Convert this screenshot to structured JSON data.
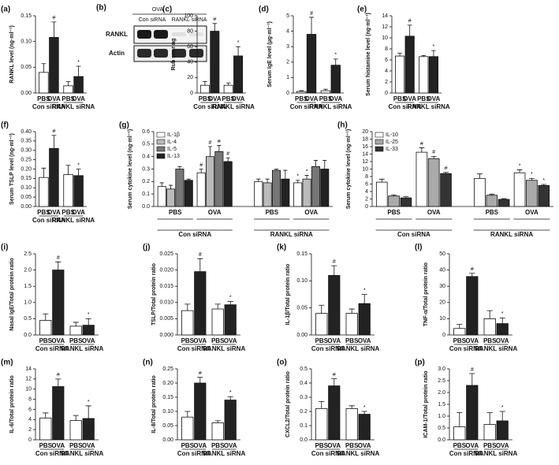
{
  "blot": {
    "panel": "(b)",
    "treatment": "OVA",
    "groups": [
      "Con siRNA",
      "RANKL siRNA"
    ],
    "rows": [
      "RANKL",
      "Actin"
    ]
  },
  "chart_data": [
    {
      "type": "bar",
      "panel": "(a)",
      "ylabel": "RANKL level (ng·ml⁻¹)",
      "categories": [
        "PBS",
        "OVA",
        "PBS",
        "OVA"
      ],
      "groups": [
        "Con siRNA",
        "RANKL siRNA"
      ],
      "values": [
        0.04,
        0.108,
        0.014,
        0.032
      ],
      "errors": [
        0.017,
        0.03,
        0.008,
        0.02
      ],
      "colors": [
        "#ffffff",
        "#222222",
        "#ffffff",
        "#222222"
      ],
      "significance": [
        null,
        "#",
        null,
        "*"
      ],
      "ylim": [
        0,
        0.15
      ],
      "yticks": [
        {
          "value": 0,
          "label": "0.00"
        },
        0.05,
        {
          "value": 0.1,
          "label": "0.10"
        },
        0.15
      ]
    },
    {
      "type": "bar",
      "panel": "(c)",
      "ylabel": "Rub scoring",
      "categories": [
        "PBS",
        "OVA",
        "PBS",
        "OVA"
      ],
      "groups": [
        "Con siRNA",
        "RANKL siRNA"
      ],
      "values": [
        10,
        80,
        10,
        48
      ],
      "errors": [
        5,
        10,
        3,
        12
      ],
      "colors": [
        "#ffffff",
        "#222222",
        "#ffffff",
        "#222222"
      ],
      "significance": [
        null,
        "#",
        null,
        "*"
      ],
      "ylim": [
        0,
        100
      ],
      "yticks": [
        0,
        20,
        40,
        60,
        80,
        100
      ]
    },
    {
      "type": "bar",
      "panel": "(d)",
      "ylabel": "Serum IgE level (µg·ml⁻¹)",
      "categories": [
        "PBS",
        "OVA",
        "PBS",
        "OVA"
      ],
      "groups": [
        "Con siRNA",
        "RANKL siRNA"
      ],
      "values": [
        0.1,
        3.8,
        0.15,
        1.8
      ],
      "errors": [
        0.05,
        1.1,
        0.1,
        0.4
      ],
      "colors": [
        "#ffffff",
        "#222222",
        "#ffffff",
        "#222222"
      ],
      "significance": [
        null,
        "#",
        null,
        "*"
      ],
      "ylim": [
        0,
        5
      ],
      "yticks": [
        0,
        1,
        2,
        3,
        4,
        5
      ]
    },
    {
      "type": "bar",
      "panel": "(e)",
      "ylabel": "Serum histamine level (ng·ml⁻¹)",
      "categories": [
        "PBS",
        "OVA",
        "PBS",
        "OVA"
      ],
      "groups": [
        "Con siRNA",
        "RANKL siRNA"
      ],
      "values": [
        6.7,
        10.3,
        6.6,
        6.6
      ],
      "errors": [
        0.5,
        2,
        0.2,
        1.1
      ],
      "colors": [
        "#ffffff",
        "#222222",
        "#ffffff",
        "#222222"
      ],
      "significance": [
        null,
        "#",
        null,
        "*"
      ],
      "ylim": [
        0,
        14
      ],
      "yticks": [
        0,
        2,
        4,
        6,
        8,
        10,
        12,
        14
      ]
    },
    {
      "type": "bar",
      "panel": "(f)",
      "ylabel": "Serum TSLP level (ng·ml⁻¹)",
      "categories": [
        "PBS",
        "OVA",
        "PBS",
        "OVA"
      ],
      "groups": [
        "Con siRNA",
        "RANKL siRNA"
      ],
      "values": [
        0.155,
        0.31,
        0.17,
        0.165
      ],
      "errors": [
        0.05,
        0.07,
        0.05,
        0.035
      ],
      "colors": [
        "#ffffff",
        "#222222",
        "#ffffff",
        "#222222"
      ],
      "significance": [
        null,
        "#",
        null,
        "*"
      ],
      "ylim": [
        0,
        0.4
      ],
      "yticks": [
        {
          "value": 0,
          "label": "0.00"
        },
        0.05,
        {
          "value": 0.1,
          "label": "0.10"
        },
        0.15,
        {
          "value": 0.2,
          "label": "0.20"
        },
        0.25,
        {
          "value": 0.3,
          "label": "0.30"
        },
        0.35,
        {
          "value": 0.4,
          "label": "0.40"
        }
      ]
    },
    {
      "type": "grouped_bar",
      "panel": "(g)",
      "ylabel": "Serum cytokine level (ng·ml⁻¹)",
      "categories": [
        "PBS",
        "OVA",
        "PBS",
        "OVA"
      ],
      "groups": [
        "Con siRNA",
        "RANKL siRNA"
      ],
      "legend": "upper left",
      "series": [
        {
          "name": "IL-1β",
          "color": "#ffffff",
          "values": [
            0.16,
            0.27,
            0.2,
            0.19
          ],
          "errors": [
            0.03,
            0.03,
            0.02,
            0.02
          ],
          "significance": [
            null,
            "#",
            null,
            "*"
          ]
        },
        {
          "name": "IL-4",
          "color": "#bbbbbb",
          "values": [
            0.14,
            0.4,
            0.19,
            0.22
          ],
          "errors": [
            0.03,
            0.08,
            0.03,
            0.03
          ],
          "significance": [
            null,
            "#",
            null,
            "*"
          ]
        },
        {
          "name": "IL-5",
          "color": "#777777",
          "values": [
            0.3,
            0.44,
            0.29,
            0.32
          ],
          "errors": [
            0.02,
            0.05,
            0.01,
            0.05
          ],
          "significance": [
            null,
            "#",
            null,
            null
          ]
        },
        {
          "name": "IL-13",
          "color": "#222222",
          "values": [
            0.21,
            0.36,
            0.22,
            0.3
          ],
          "errors": [
            0.01,
            0.03,
            0.07,
            0.07
          ],
          "significance": [
            null,
            "#",
            null,
            null
          ]
        }
      ],
      "ylim": [
        0,
        0.6
      ],
      "yticks": [
        {
          "value": 0,
          "label": "0.0"
        },
        0.1,
        0.2,
        0.3,
        0.4,
        0.5,
        0.6
      ]
    },
    {
      "type": "grouped_bar",
      "panel": "(h)",
      "ylabel": "Serum cytokine level (ng·ml⁻¹)",
      "categories": [
        "PBS",
        "OVA",
        "PBS",
        "OVA"
      ],
      "groups": [
        "Con siRNA",
        "RANKL siRNA"
      ],
      "legend": "upper left",
      "series": [
        {
          "name": "IL-10",
          "color": "#ffffff",
          "values": [
            6.5,
            14.5,
            7.5,
            9
          ],
          "errors": [
            0.8,
            1.2,
            1.2,
            0.8
          ],
          "significance": [
            null,
            "#",
            null,
            "*"
          ]
        },
        {
          "name": "IL-25",
          "color": "#aaaaaa",
          "values": [
            2.8,
            12.8,
            3,
            7
          ],
          "errors": [
            0.3,
            0.6,
            0.3,
            0.5
          ],
          "significance": [
            null,
            "#",
            null,
            "*"
          ]
        },
        {
          "name": "IL-33",
          "color": "#333333",
          "values": [
            2.3,
            8.8,
            1.9,
            5.6
          ],
          "errors": [
            0.3,
            0.3,
            0.2,
            0.3
          ],
          "significance": [
            null,
            "#",
            null,
            "*"
          ]
        }
      ],
      "ylim": [
        0,
        20
      ],
      "yticks": [
        0,
        2,
        4,
        6,
        8,
        10,
        12,
        14,
        16,
        18,
        20
      ]
    },
    {
      "type": "bar",
      "panel": "(i)",
      "ylabel": "Nasal IgE/Total protein ratio",
      "categories": [
        "PBS",
        "OVA",
        "PBS",
        "OVA"
      ],
      "groups": [
        "Con siRNA",
        "RANKL siRNA"
      ],
      "values": [
        0.45,
        2.0,
        0.27,
        0.3
      ],
      "errors": [
        0.2,
        0.25,
        0.12,
        0.2
      ],
      "colors": [
        "#ffffff",
        "#222222",
        "#ffffff",
        "#222222"
      ],
      "significance": [
        null,
        "#",
        null,
        "*"
      ],
      "ylim": [
        0,
        2.5
      ],
      "yticks": [
        {
          "value": 0,
          "label": "0.0"
        },
        0.5,
        {
          "value": 1,
          "label": "1.0"
        },
        1.5,
        {
          "value": 2,
          "label": "2.0"
        },
        2.5
      ]
    },
    {
      "type": "bar",
      "panel": "(j)",
      "ylabel": "TSLP/Total protein ratio",
      "categories": [
        "PBS",
        "OVA",
        "PBS",
        "OVA"
      ],
      "groups": [
        "Con siRNA",
        "RANKL siRNA"
      ],
      "values": [
        0.0075,
        0.0195,
        0.008,
        0.0093
      ],
      "errors": [
        0.002,
        0.004,
        0.0015,
        0.001
      ],
      "colors": [
        "#ffffff",
        "#222222",
        "#ffffff",
        "#222222"
      ],
      "significance": [
        null,
        "#",
        null,
        "*"
      ],
      "ylim": [
        0,
        0.025
      ],
      "yticks": [
        {
          "value": 0,
          "label": "0.000"
        },
        0.005,
        {
          "value": 0.01,
          "label": "0.010"
        },
        0.015,
        {
          "value": 0.02,
          "label": "0.020"
        },
        0.025
      ]
    },
    {
      "type": "bar",
      "panel": "(k)",
      "ylabel": "IL-1β/Total protein ratio",
      "categories": [
        "PBS",
        "OVA",
        "PBS",
        "OVA"
      ],
      "groups": [
        "Con siRNA",
        "RANKL siRNA"
      ],
      "values": [
        0.04,
        0.11,
        0.04,
        0.058
      ],
      "errors": [
        0.015,
        0.018,
        0.008,
        0.017
      ],
      "colors": [
        "#ffffff",
        "#222222",
        "#ffffff",
        "#222222"
      ],
      "significance": [
        null,
        "#",
        null,
        "*"
      ],
      "ylim": [
        0,
        0.15
      ],
      "yticks": [
        {
          "value": 0,
          "label": "0.00"
        },
        0.05,
        {
          "value": 0.1,
          "label": "0.10"
        },
        0.15
      ]
    },
    {
      "type": "bar",
      "panel": "(l)",
      "ylabel": "TNF-α/Total protein ratio",
      "categories": [
        "PBS",
        "OVA",
        "PBS",
        "OVA"
      ],
      "groups": [
        "Con siRNA",
        "RANKL siRNA"
      ],
      "values": [
        4,
        36,
        10,
        7
      ],
      "errors": [
        2.5,
        2,
        5,
        3.5
      ],
      "colors": [
        "#ffffff",
        "#222222",
        "#ffffff",
        "#222222"
      ],
      "significance": [
        null,
        "#",
        null,
        "*"
      ],
      "ylim": [
        0,
        50
      ],
      "yticks": [
        0,
        10,
        20,
        30,
        40,
        50
      ]
    },
    {
      "type": "bar",
      "panel": "(m)",
      "ylabel": "IL-6/Total protein ratio",
      "categories": [
        "PBS",
        "OVA",
        "PBS",
        "OVA"
      ],
      "groups": [
        "Con siRNA",
        "RANKL siRNA"
      ],
      "values": [
        4.3,
        10.5,
        3.8,
        4.2
      ],
      "errors": [
        1,
        1.5,
        1,
        2.5
      ],
      "colors": [
        "#ffffff",
        "#222222",
        "#ffffff",
        "#222222"
      ],
      "significance": [
        null,
        "#",
        null,
        "*"
      ],
      "ylim": [
        0,
        14
      ],
      "yticks": [
        0,
        2,
        4,
        6,
        8,
        10,
        12,
        14
      ]
    },
    {
      "type": "bar",
      "panel": "(n)",
      "ylabel": "IL-8/Total protein ratio",
      "categories": [
        "PBS",
        "OVA",
        "PBS",
        "OVA"
      ],
      "groups": [
        "Con siRNA",
        "RANKL siRNA"
      ],
      "values": [
        0.08,
        0.2,
        0.06,
        0.14
      ],
      "errors": [
        0.02,
        0.02,
        0.007,
        0.012
      ],
      "colors": [
        "#ffffff",
        "#222222",
        "#ffffff",
        "#222222"
      ],
      "significance": [
        null,
        "#",
        null,
        "*"
      ],
      "ylim": [
        0,
        0.25
      ],
      "yticks": [
        {
          "value": 0,
          "label": "0.00"
        },
        0.05,
        {
          "value": 0.1,
          "label": "0.10"
        },
        0.15,
        {
          "value": 0.2,
          "label": "0.20"
        },
        0.25
      ]
    },
    {
      "type": "bar",
      "panel": "(o)",
      "ylabel": "CXCL2/Total protein ratio",
      "categories": [
        "PBS",
        "OVA",
        "PBS",
        "OVA"
      ],
      "groups": [
        "Con siRNA",
        "RANKL siRNA"
      ],
      "values": [
        0.22,
        0.38,
        0.22,
        0.18
      ],
      "errors": [
        0.05,
        0.05,
        0.02,
        0.02
      ],
      "colors": [
        "#ffffff",
        "#222222",
        "#ffffff",
        "#222222"
      ],
      "significance": [
        null,
        "#",
        null,
        "*"
      ],
      "ylim": [
        0,
        0.5
      ],
      "yticks": [
        {
          "value": 0,
          "label": "0.0"
        },
        0.1,
        0.2,
        0.3,
        0.4,
        0.5
      ]
    },
    {
      "type": "bar",
      "panel": "(p)",
      "ylabel": "ICAM-1/Total protein ratio",
      "categories": [
        "PBS",
        "OVA",
        "PBS",
        "OVA"
      ],
      "groups": [
        "Con siRNA",
        "RANKL siRNA"
      ],
      "values": [
        0.55,
        2.3,
        0.65,
        0.8
      ],
      "errors": [
        0.6,
        0.5,
        0.5,
        0.4
      ],
      "colors": [
        "#ffffff",
        "#222222",
        "#ffffff",
        "#222222"
      ],
      "significance": [
        null,
        "#",
        null,
        "*"
      ],
      "ylim": [
        0,
        3
      ],
      "yticks": [
        {
          "value": 0,
          "label": "0.0"
        },
        0.5,
        {
          "value": 1,
          "label": "1.0"
        },
        1.5,
        {
          "value": 2,
          "label": "2.0"
        },
        2.5,
        {
          "value": 3,
          "label": "3.0"
        }
      ]
    }
  ]
}
